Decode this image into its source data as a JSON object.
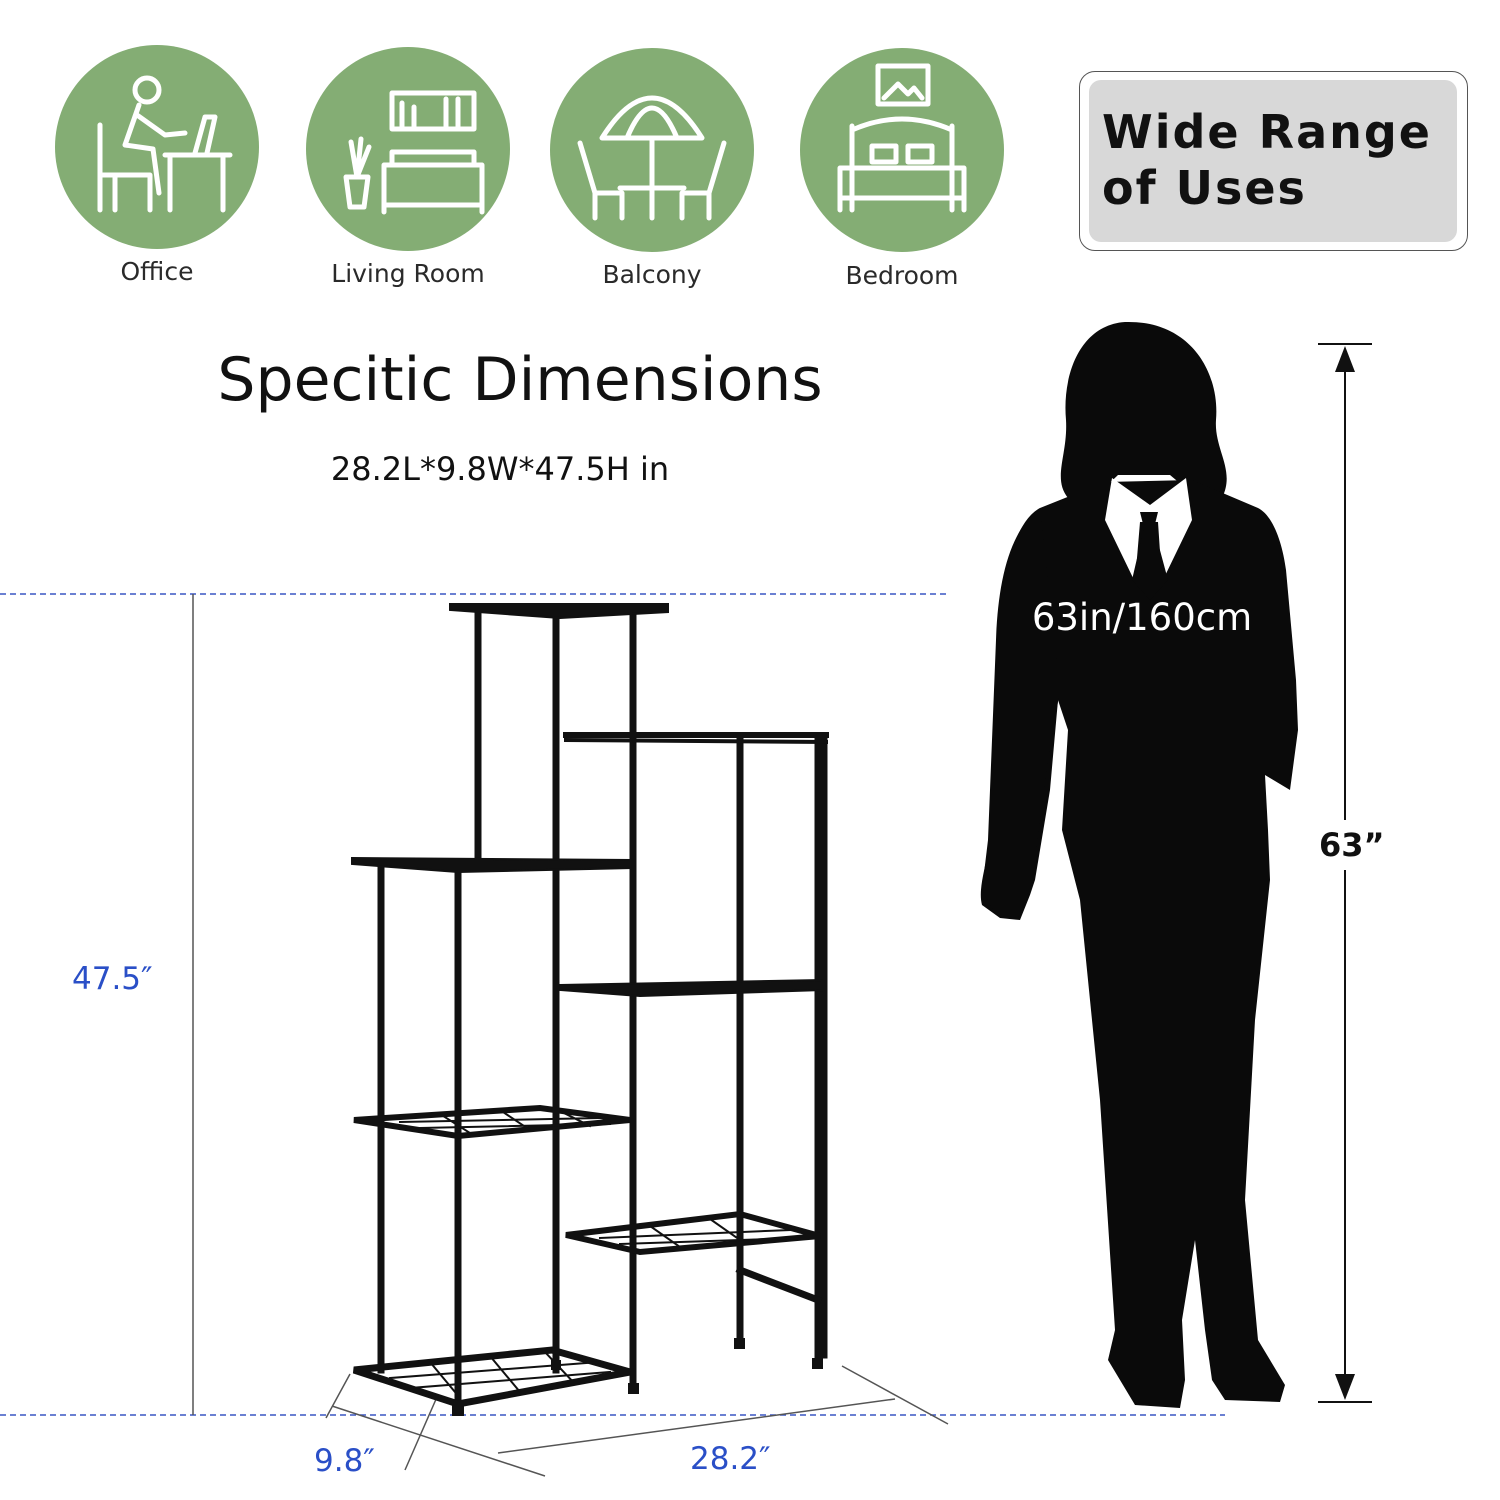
{
  "uses": {
    "heading": "Wide Range of Uses",
    "heading_line1": "Wide Range",
    "heading_line2": "of Uses",
    "items": [
      {
        "label": "Office",
        "icon": "office-desk-icon"
      },
      {
        "label": "Living Room",
        "icon": "living-room-sofa-icon"
      },
      {
        "label": "Balcony",
        "icon": "balcony-umbrella-table-icon"
      },
      {
        "label": "Bedroom",
        "icon": "bedroom-bed-icon"
      }
    ]
  },
  "dimensions": {
    "title": "Specitic Dimensions",
    "summary": "28.2L*9.8W*47.5H in",
    "height_label": "47.5″",
    "width_label": "9.8″",
    "length_label": "28.2″"
  },
  "person": {
    "height_text": "63in/160cm",
    "height_label": "63”"
  },
  "colors": {
    "circle_green": "#84ad74",
    "dimension_blue": "#2a4fc7",
    "badge_gray": "#d8d8d8"
  }
}
